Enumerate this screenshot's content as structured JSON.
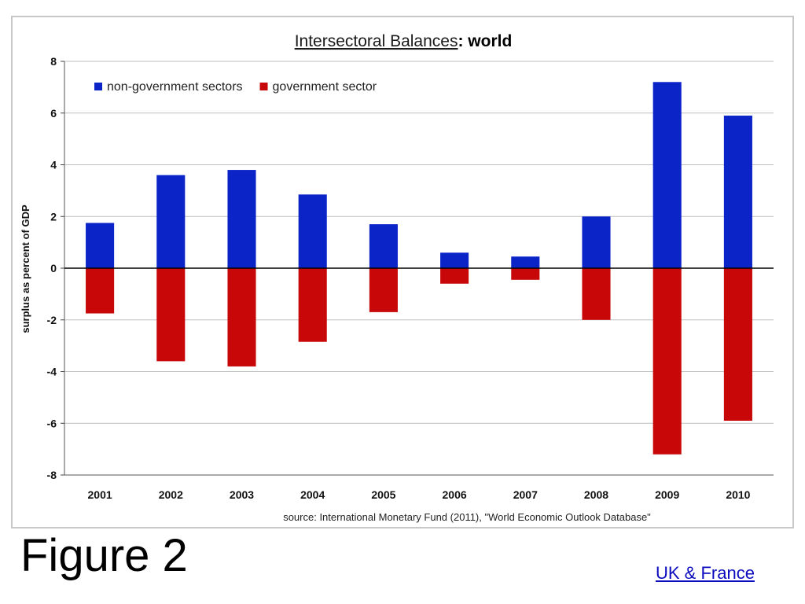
{
  "caption": "Figure 2",
  "link_label": "UK & France",
  "source_note": "source:  International Monetary Fund (2011), \"World Economic Outlook Database\"",
  "colors": {
    "nongov": "#0a24c8",
    "gov": "#c80808",
    "grid": "#bfbfbf",
    "axis": "#000000"
  },
  "chart_data": {
    "type": "bar",
    "title": "Intersectoral Balances",
    "title_suffix": "world",
    "ylabel": "surplus as percent of GDP",
    "xlabel": "",
    "ylim": [
      -8,
      8
    ],
    "yticks": [
      8,
      6,
      4,
      2,
      0,
      -2,
      -4,
      -6,
      -8
    ],
    "grid": true,
    "legend_position": "top-left",
    "categories": [
      "2001",
      "2002",
      "2003",
      "2004",
      "2005",
      "2006",
      "2007",
      "2008",
      "2009",
      "2010"
    ],
    "series": [
      {
        "name": "non-government sectors",
        "color": "#0a24c8",
        "values": [
          1.75,
          3.6,
          3.8,
          2.85,
          1.7,
          0.6,
          0.45,
          2.0,
          7.2,
          5.9
        ]
      },
      {
        "name": "government sector",
        "color": "#c80808",
        "values": [
          -1.75,
          -3.6,
          -3.8,
          -2.85,
          -1.7,
          -0.6,
          -0.45,
          -2.0,
          -7.2,
          -5.9
        ]
      }
    ]
  }
}
